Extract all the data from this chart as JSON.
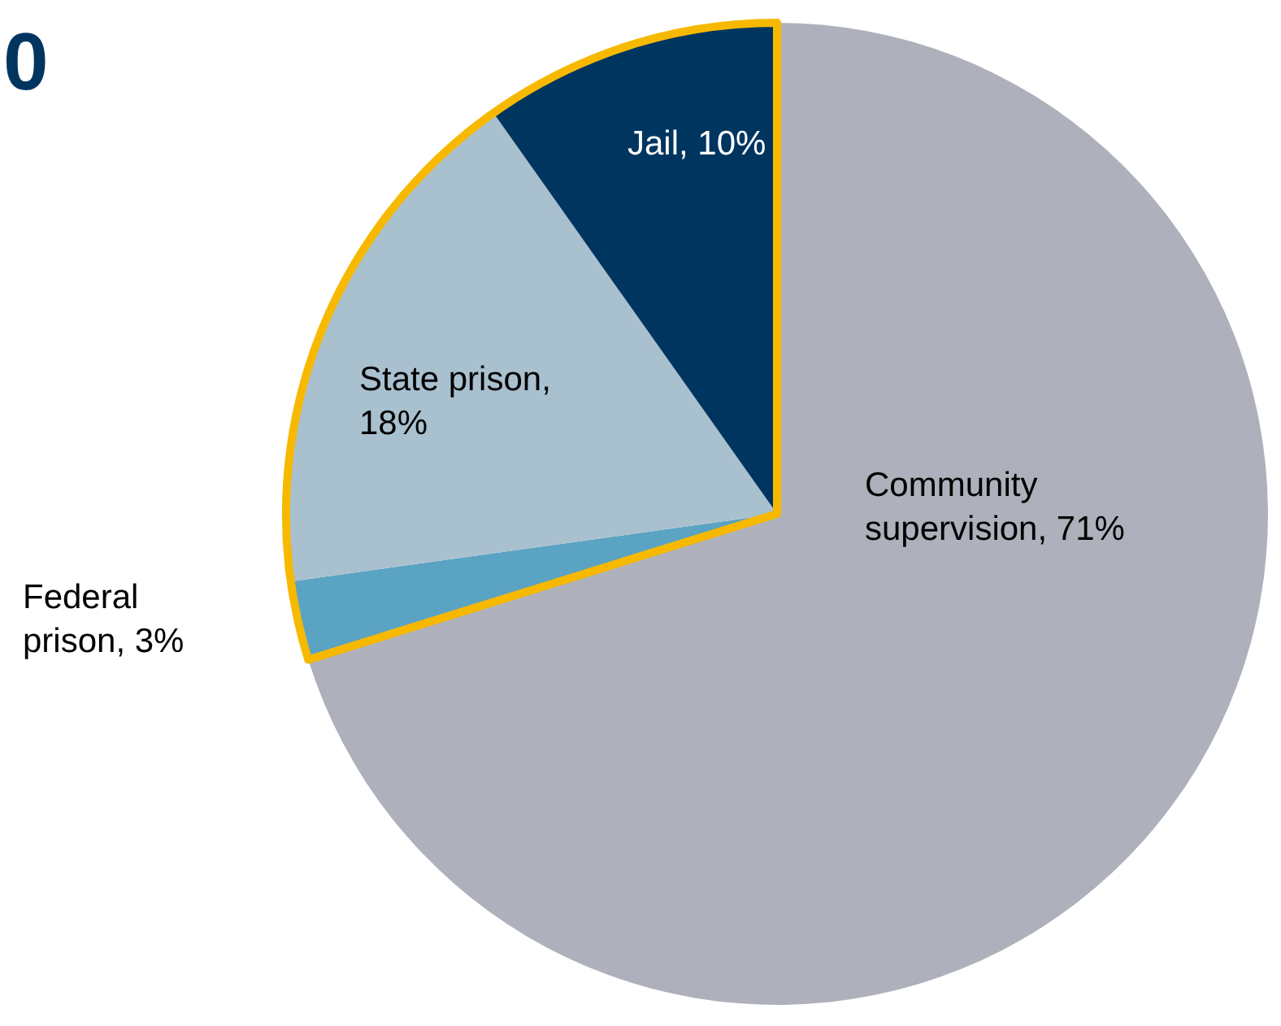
{
  "chart_data": {
    "type": "pie",
    "title": "0",
    "categories": [
      "Community supervision, 71%",
      "Federal prison, 3%",
      "State prison, 18%",
      "Jail, 10%"
    ],
    "values": [
      70.2,
      2.6,
      17.4,
      9.8
    ],
    "colors": [
      "#aeb1bb",
      "#5ba3c2",
      "#a9c0cf",
      "#003560"
    ]
  }
}
